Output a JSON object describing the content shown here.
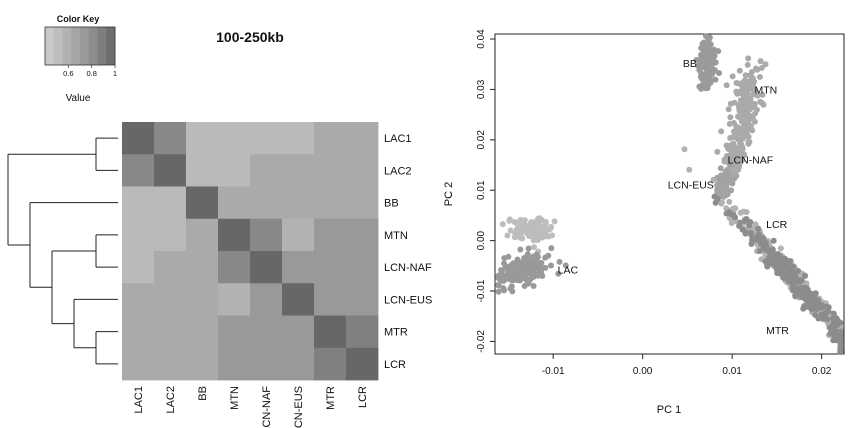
{
  "chart_data": [
    {
      "type": "heatmap",
      "title": "100-250kb",
      "color_key": {
        "title": "Color Key",
        "xlabel": "Value",
        "range": [
          0.4,
          1.0
        ],
        "ticks": [
          "0.6",
          "0.8",
          "1"
        ],
        "bins": [
          0.43,
          0.5,
          0.57,
          0.64,
          0.71,
          0.79,
          0.86,
          0.93
        ],
        "colors": [
          "#c8c8c8",
          "#bdbdbd",
          "#b2b2b2",
          "#a5a5a5",
          "#999999",
          "#8c8c8c",
          "#7e7e7e",
          "#6e6e6e"
        ]
      },
      "row_labels": [
        "LAC1",
        "LAC2",
        "BB",
        "MTN",
        "LCN-NAF",
        "LCN-EUS",
        "MTR",
        "LCR"
      ],
      "col_labels": [
        "LAC1",
        "LAC2",
        "BB",
        "MTN",
        "LCN-NAF",
        "LCN-EUS",
        "MTR",
        "LCR"
      ],
      "matrix": [
        [
          1.0,
          0.8,
          0.5,
          0.5,
          0.5,
          0.5,
          0.6,
          0.6
        ],
        [
          0.8,
          1.0,
          0.5,
          0.5,
          0.6,
          0.6,
          0.6,
          0.6
        ],
        [
          0.5,
          0.5,
          1.0,
          0.6,
          0.6,
          0.6,
          0.6,
          0.6
        ],
        [
          0.5,
          0.5,
          0.6,
          1.0,
          0.8,
          0.55,
          0.7,
          0.7
        ],
        [
          0.5,
          0.6,
          0.6,
          0.8,
          1.0,
          0.7,
          0.7,
          0.7
        ],
        [
          0.6,
          0.6,
          0.6,
          0.55,
          0.7,
          1.0,
          0.7,
          0.7
        ],
        [
          0.6,
          0.6,
          0.6,
          0.7,
          0.7,
          0.7,
          1.0,
          0.85
        ],
        [
          0.6,
          0.6,
          0.6,
          0.7,
          0.7,
          0.7,
          0.85,
          1.0
        ]
      ],
      "dendrogram": "((LAC1,LAC2),(BB,((MTN,LCN-NAF),(LCN-EUS,(MTR,LCR)))))"
    },
    {
      "type": "scatter",
      "xlabel": "PC 1",
      "ylabel": "PC 2",
      "xlim": [
        -0.0165,
        0.0225
      ],
      "ylim": [
        -0.0225,
        0.041
      ],
      "xticks": [
        -0.01,
        0.0,
        0.01,
        0.02
      ],
      "xtick_labels": [
        "-0.01",
        "0.00",
        "0.01",
        "0.02"
      ],
      "yticks": [
        -0.02,
        -0.01,
        0.0,
        0.01,
        0.02,
        0.03,
        0.04
      ],
      "ytick_labels": [
        "-0.02",
        "-0.01",
        "0.00",
        "0.01",
        "0.02",
        "0.03",
        "0.04"
      ],
      "grid": false,
      "annotations": [
        {
          "text": "BB",
          "x": 0.0045,
          "y": 0.0345
        },
        {
          "text": "MTN",
          "x": 0.0125,
          "y": 0.0292
        },
        {
          "text": "LCN-NAF",
          "x": 0.0095,
          "y": 0.0153
        },
        {
          "text": "LCN-EUS",
          "x": 0.0028,
          "y": 0.0103
        },
        {
          "text": "LAC",
          "x": -0.0095,
          "y": -0.0065
        },
        {
          "text": "LCR",
          "x": 0.0138,
          "y": 0.0025
        },
        {
          "text": "MTR",
          "x": 0.0138,
          "y": -0.0185
        }
      ],
      "clusters": [
        {
          "group": "LAC",
          "color": "#bdbdbd",
          "cx": -0.0127,
          "cy": 0.0022,
          "sx": 0.0011,
          "sy": 0.0012,
          "n": 110,
          "rho": 0.0
        },
        {
          "group": "LAC",
          "color": "#999999",
          "cx": -0.0133,
          "cy": -0.0057,
          "sx": 0.0016,
          "sy": 0.0016,
          "n": 170,
          "rho": 0.55
        },
        {
          "group": "BB",
          "color": "#9a9a9a",
          "cx": 0.0072,
          "cy": 0.0345,
          "sx": 0.00045,
          "sy": 0.0023,
          "n": 130,
          "rho": 0.0
        },
        {
          "group": "MTN",
          "color": "#aaaaaa",
          "cx": 0.0115,
          "cy": 0.0255,
          "sx": 0.0009,
          "sy": 0.0045,
          "n": 170,
          "rho": 0.6
        },
        {
          "group": "LCN-NAF",
          "color": "#aaaaaa",
          "cx": 0.0102,
          "cy": 0.0165,
          "sx": 0.0007,
          "sy": 0.0022,
          "n": 70,
          "rho": 0.5
        },
        {
          "group": "LCN-EUS",
          "color": "#a3a3a3",
          "cx": 0.0092,
          "cy": 0.0117,
          "sx": 0.0005,
          "sy": 0.0015,
          "n": 90,
          "rho": 0.4
        },
        {
          "group": "LCR",
          "color": "#b2b2b2",
          "cx": 0.0168,
          "cy": -0.0075,
          "sx": 0.0035,
          "sy": 0.0072,
          "n": 330,
          "rho": -0.985
        },
        {
          "group": "MTR",
          "color": "#8c8c8c",
          "cx": 0.0172,
          "cy": -0.0085,
          "sx": 0.0033,
          "sy": 0.0066,
          "n": 260,
          "rho": -0.98
        }
      ]
    }
  ]
}
